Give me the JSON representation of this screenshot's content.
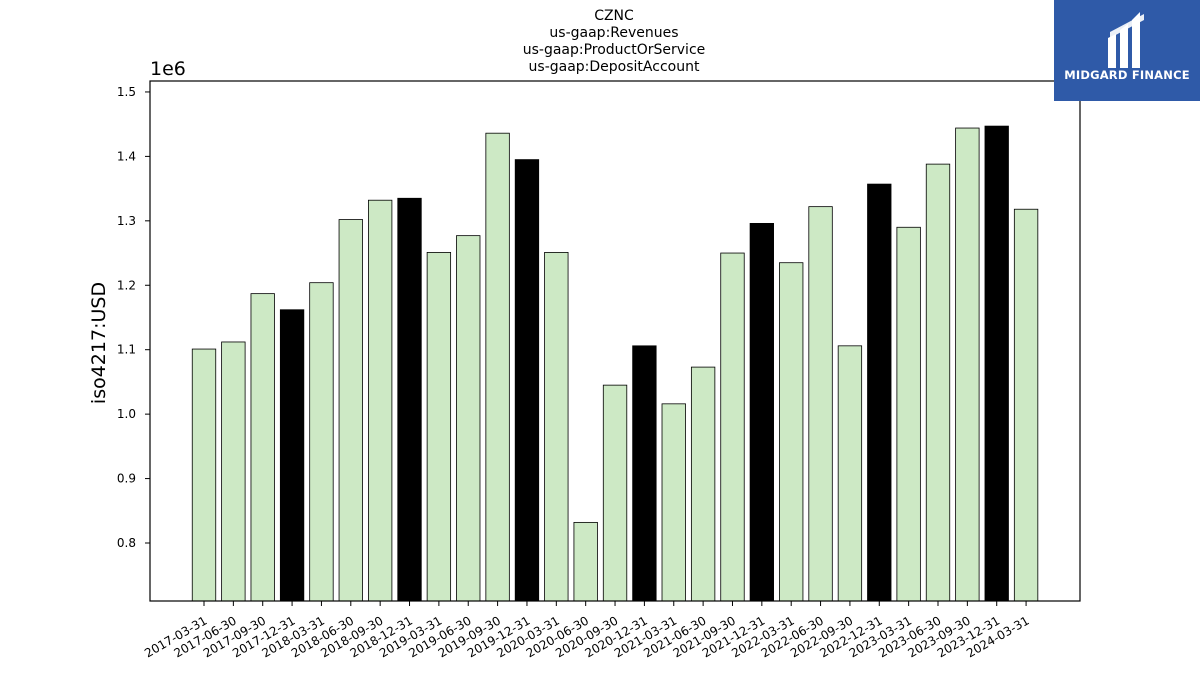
{
  "chart_data": {
    "type": "bar",
    "title_lines": [
      "CZNC",
      "us-gaap:Revenues",
      "us-gaap:ProductOrService",
      "us-gaap:DepositAccount"
    ],
    "ylabel": "iso4217:USD",
    "y_offset_label": "1e6",
    "ylim": [
      710000,
      1517000
    ],
    "yticks": [
      800000,
      900000,
      1000000,
      1100000,
      1200000,
      1300000,
      1400000,
      1500000
    ],
    "ytick_labels": [
      "0.8",
      "0.9",
      "1.0",
      "1.1",
      "1.2",
      "1.3",
      "1.4",
      "1.5"
    ],
    "categories": [
      "2017-03-31",
      "2017-06-30",
      "2017-09-30",
      "2017-12-31",
      "2018-03-31",
      "2018-06-30",
      "2018-09-30",
      "2018-12-31",
      "2019-03-31",
      "2019-06-30",
      "2019-09-30",
      "2019-12-31",
      "2020-03-31",
      "2020-06-30",
      "2020-09-30",
      "2020-12-31",
      "2021-03-31",
      "2021-06-30",
      "2021-09-30",
      "2021-12-31",
      "2022-03-31",
      "2022-06-30",
      "2022-09-30",
      "2022-12-31",
      "2023-03-31",
      "2023-06-30",
      "2023-09-30",
      "2023-12-31",
      "2024-03-31"
    ],
    "values": [
      1101000,
      1112000,
      1187000,
      1162000,
      1204000,
      1302000,
      1332000,
      1335000,
      1251000,
      1277000,
      1436000,
      1395000,
      1251000,
      832000,
      1045000,
      1106000,
      1016000,
      1073000,
      1250000,
      1296000,
      1235000,
      1322000,
      1106000,
      1357000,
      1290000,
      1388000,
      1444000,
      1447000,
      1318000
    ],
    "highlight": [
      false,
      false,
      false,
      true,
      false,
      false,
      false,
      true,
      false,
      false,
      false,
      true,
      false,
      false,
      false,
      true,
      false,
      false,
      false,
      true,
      false,
      false,
      false,
      true,
      false,
      false,
      false,
      true,
      false
    ],
    "colors": {
      "normal": "#cde9c5",
      "highlight": "#000000",
      "edge": "#000000"
    },
    "grid": false,
    "legend": "none"
  },
  "logo": {
    "text": "MIDGARD FINANCE",
    "background": "#2f5aa8"
  }
}
